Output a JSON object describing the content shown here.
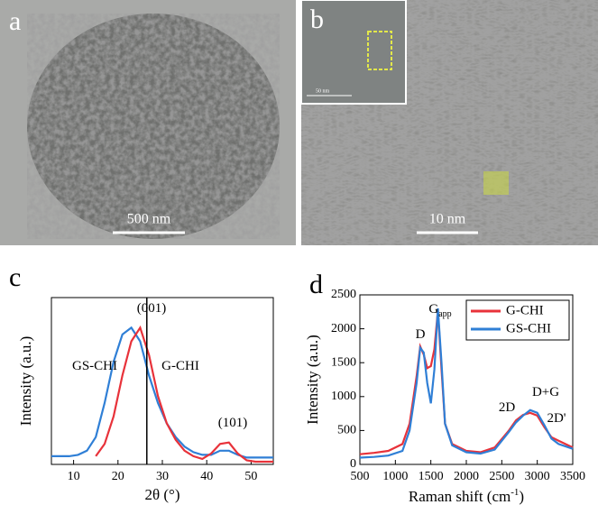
{
  "panels": [
    {
      "label": "a",
      "scale_bar": "500 nm"
    },
    {
      "label": "b",
      "scale_bar": "10 nm",
      "inset_scale_bar": "50 nm"
    }
  ],
  "chart_data": [
    {
      "type": "line",
      "panel_label": "c",
      "x_label": "2θ (°)",
      "y_label": "Intensity (a.u.)",
      "x": [
        5,
        7,
        9,
        11,
        13,
        15,
        17,
        19,
        21,
        23,
        25,
        27,
        29,
        31,
        33,
        35,
        37,
        39,
        41,
        43,
        45,
        47,
        49,
        51,
        53,
        55
      ],
      "series": [
        {
          "name": "GS-CHI",
          "color": "#2f7fd6",
          "values": [
            0.06,
            0.06,
            0.06,
            0.07,
            0.1,
            0.2,
            0.45,
            0.75,
            0.95,
            1.0,
            0.9,
            0.65,
            0.45,
            0.3,
            0.2,
            0.13,
            0.09,
            0.07,
            0.07,
            0.1,
            0.1,
            0.07,
            0.05,
            0.05,
            0.05,
            0.05
          ]
        },
        {
          "name": "G-CHI",
          "color": "#e8323a",
          "values": [
            null,
            null,
            null,
            null,
            null,
            0.06,
            0.15,
            0.35,
            0.65,
            0.9,
            1.0,
            0.8,
            0.5,
            0.3,
            0.18,
            0.1,
            0.06,
            0.04,
            0.08,
            0.15,
            0.16,
            0.08,
            0.03,
            0.02,
            0.02,
            0.02
          ]
        }
      ],
      "vline": 26.5,
      "annotations": [
        {
          "text": "(001)"
        },
        {
          "text": "GS-CHI"
        },
        {
          "text": "G-CHI"
        },
        {
          "text": "(101)"
        }
      ],
      "xlim": [
        5,
        55
      ],
      "xticks": [
        10,
        20,
        30,
        40,
        50
      ],
      "ylim": [
        0,
        1.22
      ]
    },
    {
      "type": "line",
      "panel_label": "d",
      "x_label": {
        "text": "Raman shift (cm",
        "superscript": "-1",
        "suffix": ")"
      },
      "y_label": "Intensity (a.u.)",
      "x": [
        500,
        700,
        900,
        1100,
        1200,
        1300,
        1350,
        1400,
        1450,
        1500,
        1550,
        1600,
        1650,
        1700,
        1800,
        2000,
        2200,
        2400,
        2600,
        2700,
        2800,
        2900,
        3000,
        3100,
        3200,
        3300,
        3500
      ],
      "series": [
        {
          "name": "G-CHI",
          "color": "#e8323a",
          "values": [
            150,
            170,
            200,
            300,
            600,
            1300,
            1740,
            1620,
            1420,
            1450,
            1700,
            2270,
            1400,
            600,
            300,
            200,
            180,
            250,
            500,
            650,
            730,
            760,
            720,
            550,
            400,
            350,
            250
          ]
        },
        {
          "name": "GS-CHI",
          "color": "#2f7fd6",
          "values": [
            100,
            110,
            130,
            200,
            500,
            1200,
            1720,
            1650,
            1200,
            900,
            1400,
            2300,
            1500,
            600,
            280,
            180,
            160,
            220,
            480,
            620,
            720,
            800,
            760,
            580,
            380,
            300,
            230
          ]
        }
      ],
      "annotations": [
        {
          "text": "D"
        },
        {
          "text": "G",
          "subscript": "app"
        },
        {
          "text": "2D"
        },
        {
          "text": "D+G"
        },
        {
          "text": "2D'"
        }
      ],
      "legend": "upper right",
      "xlim": [
        500,
        3500
      ],
      "xticks": [
        500,
        1000,
        1500,
        2000,
        2500,
        3000,
        3500
      ],
      "ylim": [
        0,
        2500
      ],
      "yticks": [
        0,
        500,
        1000,
        1500,
        2000,
        2500
      ]
    }
  ]
}
